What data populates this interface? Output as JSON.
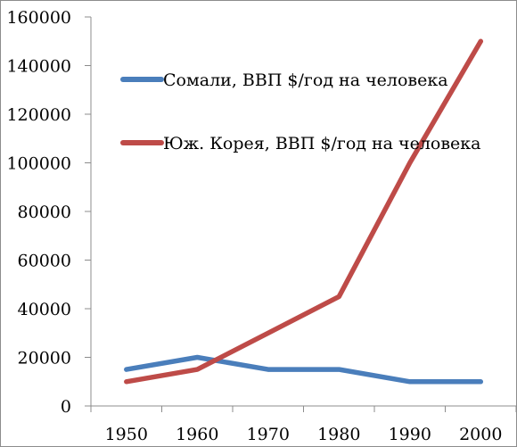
{
  "chart_data": {
    "type": "line",
    "title": "",
    "xlabel": "",
    "ylabel": "",
    "x": [
      1950,
      1960,
      1970,
      1980,
      1990,
      2000
    ],
    "x_tick_labels": [
      "1950",
      "1960",
      "1970",
      "1980",
      "1990",
      "2000"
    ],
    "ylim": [
      0,
      160000
    ],
    "y_ticks": [
      0,
      20000,
      40000,
      60000,
      80000,
      100000,
      120000,
      140000,
      160000
    ],
    "y_tick_labels": [
      "0",
      "20000",
      "40000",
      "60000",
      "80000",
      "100000",
      "120000",
      "140000",
      "160000"
    ],
    "grid": false,
    "legend_position": "inside-top-left",
    "series": [
      {
        "name": "Сомали, ВВП  $/год на человека",
        "color": "#4a7ebb",
        "values": [
          15000,
          20000,
          15000,
          15000,
          10000,
          10000
        ]
      },
      {
        "name": "Юж. Корея, ВВП  $/год на человека",
        "color": "#be4b48",
        "values": [
          10000,
          15000,
          30000,
          45000,
          100000,
          150000
        ]
      }
    ]
  }
}
